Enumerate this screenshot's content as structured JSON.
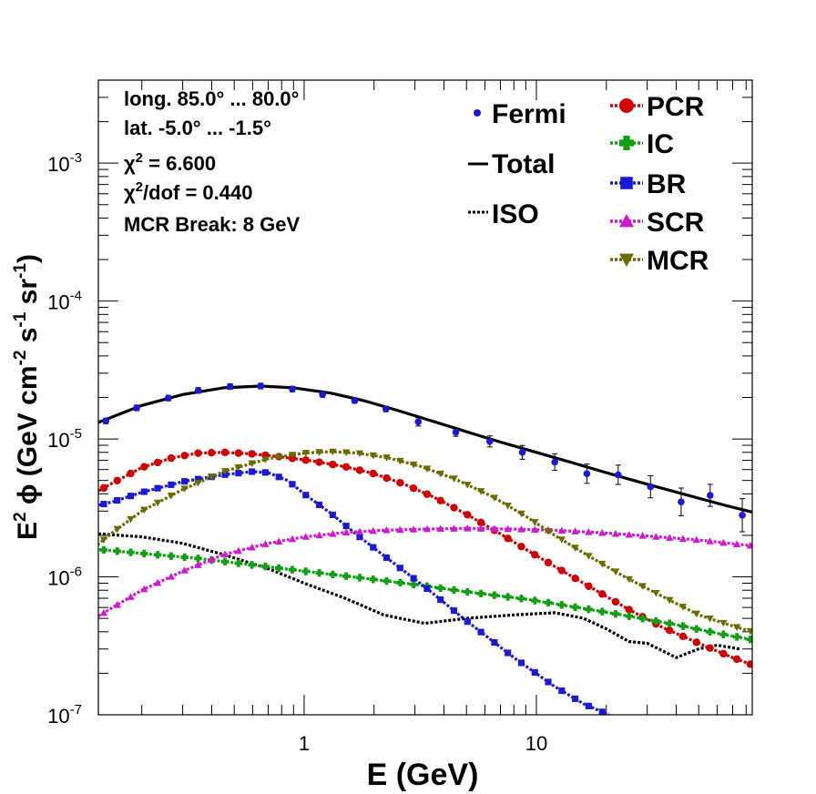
{
  "chart_data": {
    "type": "line",
    "xscale": "log",
    "yscale": "log",
    "xlim": [
      0.13,
      85
    ],
    "ylim": [
      1e-07,
      0.004
    ],
    "xlabel": "E (GeV)",
    "ylabel": "E² ϕ (GeV cm⁻² s⁻¹ sr⁻¹)",
    "xticks": [
      {
        "value": 1,
        "label": "1"
      },
      {
        "value": 10,
        "label": "10"
      }
    ],
    "yticks": [
      {
        "value": 1e-07,
        "base": "10",
        "exp": "-7"
      },
      {
        "value": 1e-06,
        "base": "10",
        "exp": "-6"
      },
      {
        "value": 1e-05,
        "base": "10",
        "exp": "-5"
      },
      {
        "value": 0.0001,
        "base": "10",
        "exp": "-4"
      },
      {
        "value": 0.001,
        "base": "10",
        "exp": "-3"
      }
    ],
    "info": {
      "longitude": "long. 85.0° ... 80.0°",
      "latitude": "lat. -5.0° ... -1.5°",
      "chi2_symbol": "χ",
      "chi2_exp": "2",
      "chi2_value": " = 6.600",
      "chi2dof_symbol": "χ",
      "chi2dof_exp": "2",
      "chi2dof_value": "/dof = 0.440",
      "mcr_break": "MCR Break:  8 GeV"
    },
    "fermi": {
      "name": "Fermi",
      "color": "#1a1ad6",
      "x": [
        0.14,
        0.19,
        0.26,
        0.35,
        0.48,
        0.65,
        0.89,
        1.2,
        1.65,
        2.25,
        3.1,
        4.5,
        6.3,
        8.7,
        12,
        16.5,
        22.5,
        31,
        42,
        56,
        77
      ],
      "y": [
        1.35e-05,
        1.68e-05,
        1.98e-05,
        2.25e-05,
        2.4e-05,
        2.42e-05,
        2.3e-05,
        2.1e-05,
        1.9e-05,
        1.65e-05,
        1.33e-05,
        1.12e-05,
        9.6e-06,
        8e-06,
        6.8e-06,
        5.6e-06,
        5.5e-06,
        4.5e-06,
        3.5e-06,
        3.9e-06,
        2.8e-06
      ],
      "err": [
        0.02,
        0.02,
        0.02,
        0.02,
        0.02,
        0.02,
        0.02,
        0.02,
        0.02,
        0.02,
        0.03,
        0.03,
        0.04,
        0.05,
        0.06,
        0.07,
        0.07,
        0.08,
        0.1,
        0.08,
        0.12
      ]
    },
    "series": [
      {
        "name": "Total",
        "key": "total",
        "style": "solid",
        "color": "#000000",
        "marker": "none",
        "x": [
          0.12,
          0.15,
          0.2,
          0.3,
          0.45,
          0.65,
          0.9,
          1.3,
          1.8,
          2.5,
          3.5,
          5,
          7,
          10,
          14,
          20,
          30,
          45,
          65,
          85
        ],
        "y": [
          1.25e-05,
          1.45e-05,
          1.75e-05,
          2.1e-05,
          2.35e-05,
          2.42e-05,
          2.35e-05,
          2.15e-05,
          1.9e-05,
          1.62e-05,
          1.36e-05,
          1.13e-05,
          9.5e-06,
          8e-06,
          6.8e-06,
          5.7e-06,
          4.7e-06,
          3.9e-06,
          3.3e-06,
          2.95e-06
        ]
      },
      {
        "name": "ISO",
        "key": "iso",
        "style": "dotted",
        "color": "#000000",
        "marker": "none",
        "x": [
          0.13,
          0.2,
          0.3,
          0.45,
          0.7,
          1.0,
          1.5,
          2.2,
          3.3,
          5,
          8,
          12,
          16,
          20,
          25,
          30,
          40,
          50,
          60,
          75
        ],
        "y": [
          2.05e-06,
          1.95e-06,
          1.75e-06,
          1.45e-06,
          1.15e-06,
          9e-07,
          7e-07,
          5.3e-07,
          4.6e-07,
          5e-07,
          5.3e-07,
          5.5e-07,
          5e-07,
          4.2e-07,
          3.4e-07,
          3.3e-07,
          2.6e-07,
          3e-07,
          3.2e-07,
          3e-07
        ]
      },
      {
        "name": "PCR",
        "key": "pcr",
        "style": "dotted",
        "color": "#d00000",
        "marker": "circle",
        "x": [
          0.12,
          0.15,
          0.2,
          0.27,
          0.35,
          0.45,
          0.6,
          0.8,
          1.1,
          1.5,
          2.0,
          2.7,
          3.6,
          5,
          7,
          9.5,
          13,
          18,
          25,
          35,
          50,
          70,
          85
        ],
        "y": [
          3.9e-06,
          4.8e-06,
          6.2e-06,
          7.3e-06,
          7.9e-06,
          8e-06,
          7.8e-06,
          7.4e-06,
          6.9e-06,
          6.3e-06,
          5.6e-06,
          4.7e-06,
          3.8e-06,
          2.85e-06,
          2.05e-06,
          1.5e-06,
          1.1e-06,
          8e-07,
          5.8e-07,
          4.3e-07,
          3.3e-07,
          2.6e-07,
          2.3e-07
        ]
      },
      {
        "name": "IC",
        "key": "ic",
        "style": "dotted",
        "color": "#11a011",
        "marker": "cross",
        "x": [
          0.12,
          0.2,
          0.35,
          0.6,
          1.0,
          1.7,
          3,
          5,
          9,
          15,
          25,
          40,
          60,
          85
        ],
        "y": [
          1.6e-06,
          1.48e-06,
          1.36e-06,
          1.22e-06,
          1.1e-06,
          9.9e-07,
          8.8e-07,
          7.8e-07,
          6.9e-07,
          6e-07,
          5.2e-07,
          4.5e-07,
          3.9e-07,
          3.5e-07
        ]
      },
      {
        "name": "BR",
        "key": "br",
        "style": "dotted",
        "color": "#1a1ad6",
        "marker": "square",
        "x": [
          0.12,
          0.15,
          0.2,
          0.3,
          0.45,
          0.6,
          0.7,
          0.85,
          1.0,
          1.3,
          1.7,
          2.3,
          3.3,
          5,
          8,
          12,
          16,
          20.5
        ],
        "y": [
          3.2e-06,
          3.5e-06,
          4.1e-06,
          4.9e-06,
          5.5e-06,
          5.8e-06,
          5.7e-06,
          5e-06,
          4e-06,
          2.9e-06,
          2e-06,
          1.35e-06,
          8.5e-07,
          4.8e-07,
          2.6e-07,
          1.6e-07,
          1.2e-07,
          1e-07
        ]
      },
      {
        "name": "SCR",
        "key": "scr",
        "style": "dotted",
        "color": "#d01ad0",
        "marker": "triangle-up",
        "x": [
          0.12,
          0.15,
          0.2,
          0.3,
          0.45,
          0.7,
          1.0,
          1.5,
          2.2,
          3.3,
          5,
          8,
          12,
          20,
          30,
          50,
          85
        ],
        "y": [
          4.8e-07,
          6e-07,
          8e-07,
          1.1e-06,
          1.45e-06,
          1.75e-06,
          1.95e-06,
          2.1e-06,
          2.18e-06,
          2.22e-06,
          2.25e-06,
          2.22e-06,
          2.18e-06,
          2.08e-06,
          1.98e-06,
          1.85e-06,
          1.68e-06
        ]
      },
      {
        "name": "MCR",
        "key": "mcr",
        "style": "dotted",
        "color": "#6b6b00",
        "marker": "triangle-down",
        "x": [
          0.12,
          0.15,
          0.2,
          0.3,
          0.45,
          0.7,
          1.0,
          1.3,
          1.7,
          2.3,
          3.2,
          4.5,
          6.5,
          9,
          12,
          17,
          24,
          35,
          50,
          70,
          85
        ],
        "y": [
          1.55e-06,
          2.1e-06,
          3e-06,
          4.3e-06,
          5.8e-06,
          7.2e-06,
          7.9e-06,
          8.1e-06,
          7.9e-06,
          7.3e-06,
          6.3e-06,
          5.1e-06,
          3.8e-06,
          2.75e-06,
          2e-06,
          1.4e-06,
          1e-06,
          7.2e-07,
          5.3e-07,
          4.4e-07,
          4e-07
        ]
      }
    ]
  }
}
